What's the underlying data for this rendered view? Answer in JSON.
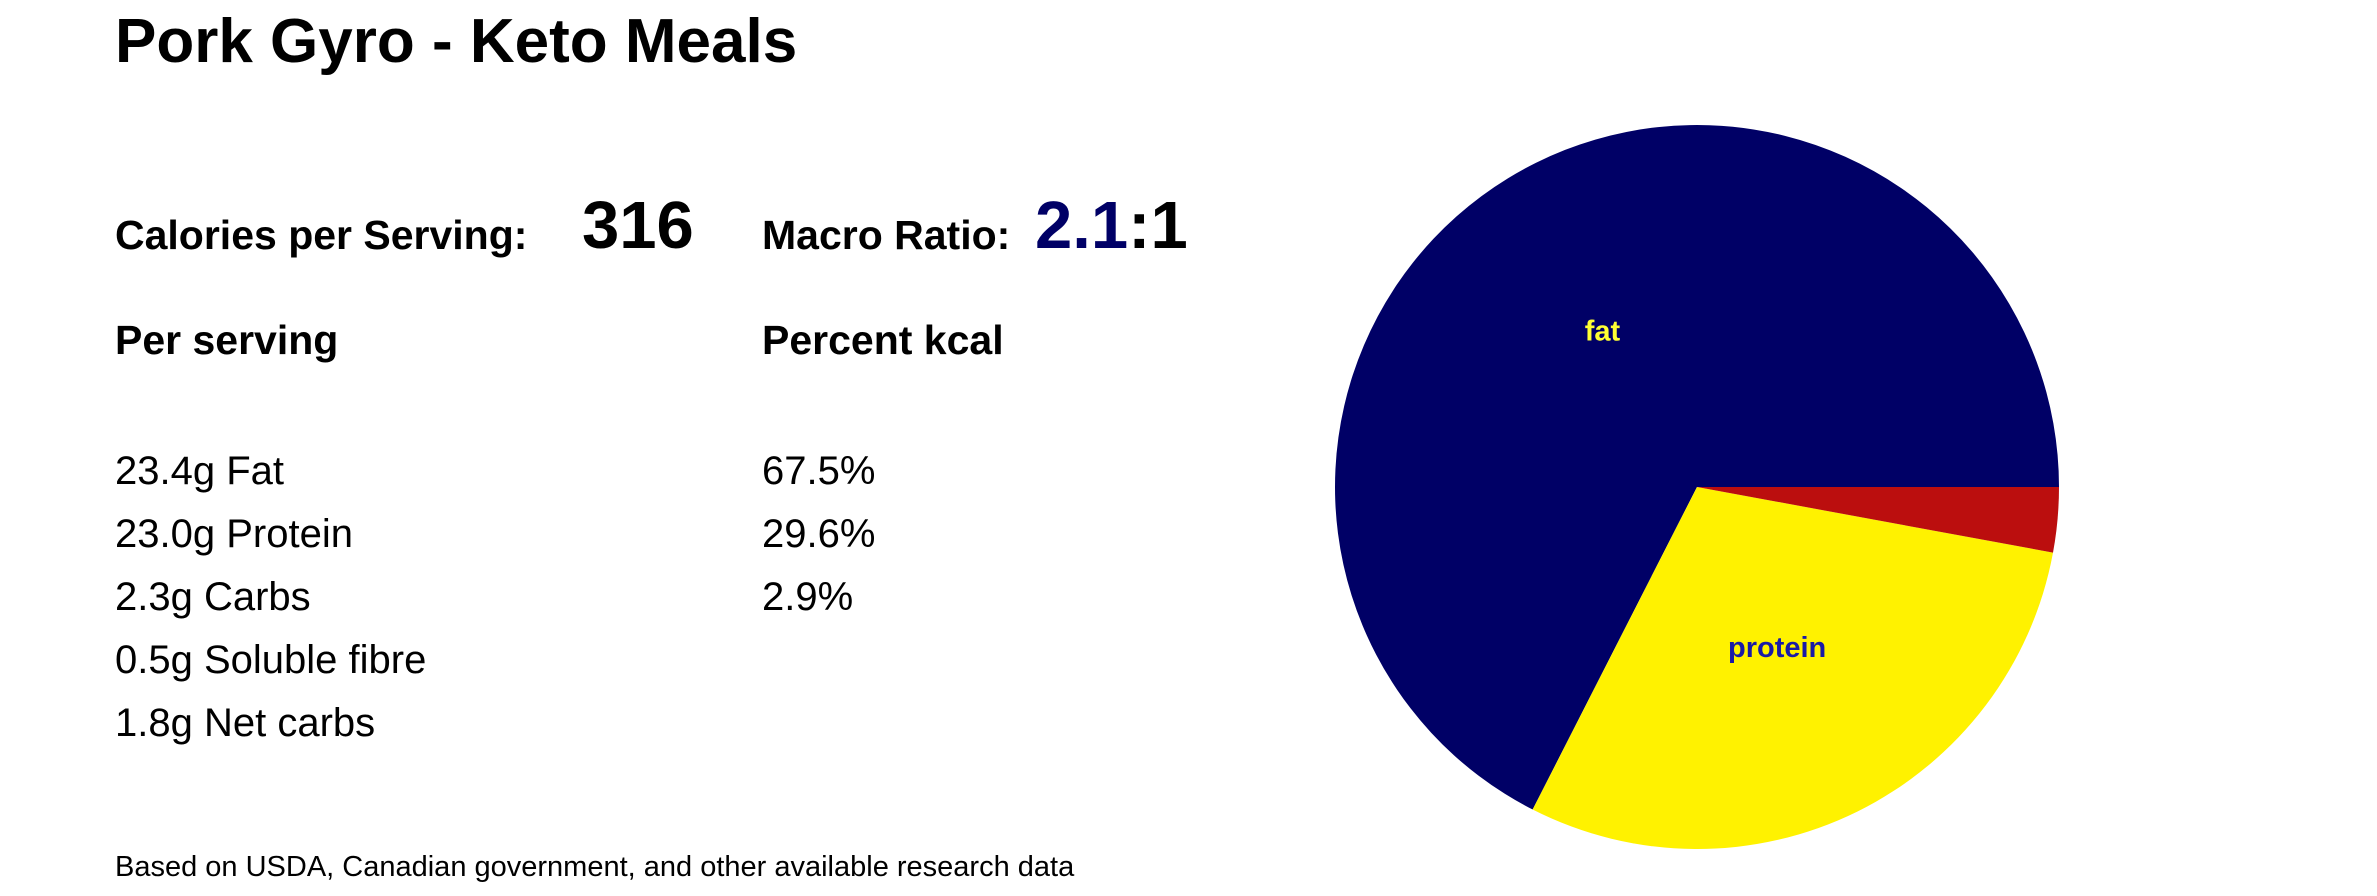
{
  "title": "Pork Gyro - Keto Meals",
  "calories": {
    "label": "Calories per Serving:",
    "value": "316"
  },
  "macro_ratio": {
    "label": "Macro Ratio:",
    "value": "2.1",
    "suffix": ":1"
  },
  "per_serving": {
    "heading": "Per serving",
    "items": [
      "23.4g Fat",
      "23.0g Protein",
      "2.3g Carbs",
      "0.5g Soluble fibre",
      "1.8g Net carbs"
    ]
  },
  "percent_kcal": {
    "heading": "Percent kcal",
    "items": [
      "67.5%",
      "29.6%",
      "2.9%"
    ]
  },
  "footnote": "Based on USDA, Canadian government, and other available research data",
  "colors": {
    "fat": "#000066",
    "protein": "#fff200",
    "carbs": "#bb0e0e",
    "ratio_accent": "#000066"
  },
  "chart_data": {
    "type": "pie",
    "title": "",
    "start": "3 o'clock",
    "direction": "counter-clockwise",
    "slices": [
      {
        "label": "fat",
        "value": 67.5,
        "color": "#000066",
        "label_color": "#ffff33"
      },
      {
        "label": "protein",
        "value": 29.6,
        "color": "#fff200",
        "label_color": "#1a1aa6"
      },
      {
        "label": "",
        "value": 2.9,
        "color": "#bb0e0e",
        "label_color": ""
      }
    ]
  }
}
